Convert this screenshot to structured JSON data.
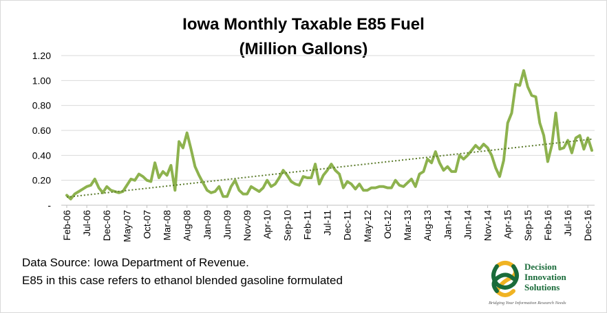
{
  "chart_data": {
    "type": "line",
    "title": "Iowa Monthly Taxable E85 Fuel",
    "subtitle": "(Million Gallons)",
    "xlabel": "",
    "ylabel": "",
    "ylim": [
      0,
      1.2
    ],
    "y_ticks": [
      "-",
      "0.20",
      "0.40",
      "0.60",
      "0.80",
      "1.00",
      "1.20"
    ],
    "x_tick_labels": [
      "Feb-06",
      "Jul-06",
      "Dec-06",
      "May-07",
      "Oct-07",
      "Mar-08",
      "Aug-08",
      "Jan-09",
      "Jun-09",
      "Nov-09",
      "Apr-10",
      "Sep-10",
      "Feb-11",
      "Jul-11",
      "Dec-11",
      "May-12",
      "Oct-12",
      "Mar-13",
      "Aug-13",
      "Jan-14",
      "Jun-14",
      "Nov-14",
      "Apr-15",
      "Sep-15",
      "Feb-16",
      "Jul-16",
      "Dec-16"
    ],
    "start_month": "Feb-06",
    "grid": true,
    "legend": "none",
    "series": [
      {
        "values": [
          0.08,
          0.05,
          0.09,
          0.11,
          0.13,
          0.15,
          0.16,
          0.21,
          0.14,
          0.1,
          0.15,
          0.12,
          0.11,
          0.1,
          0.11,
          0.16,
          0.21,
          0.2,
          0.25,
          0.23,
          0.2,
          0.19,
          0.34,
          0.22,
          0.27,
          0.24,
          0.32,
          0.12,
          0.51,
          0.46,
          0.58,
          0.45,
          0.31,
          0.24,
          0.18,
          0.12,
          0.1,
          0.11,
          0.15,
          0.07,
          0.07,
          0.15,
          0.2,
          0.12,
          0.09,
          0.09,
          0.15,
          0.13,
          0.11,
          0.14,
          0.2,
          0.15,
          0.17,
          0.22,
          0.28,
          0.24,
          0.19,
          0.17,
          0.16,
          0.23,
          0.22,
          0.22,
          0.33,
          0.17,
          0.24,
          0.28,
          0.33,
          0.28,
          0.25,
          0.14,
          0.19,
          0.17,
          0.13,
          0.17,
          0.12,
          0.12,
          0.14,
          0.14,
          0.15,
          0.15,
          0.14,
          0.14,
          0.2,
          0.16,
          0.15,
          0.18,
          0.21,
          0.15,
          0.25,
          0.27,
          0.37,
          0.34,
          0.43,
          0.34,
          0.28,
          0.31,
          0.27,
          0.27,
          0.4,
          0.37,
          0.4,
          0.44,
          0.48,
          0.45,
          0.49,
          0.46,
          0.4,
          0.3,
          0.23,
          0.36,
          0.66,
          0.74,
          0.97,
          0.96,
          1.08,
          0.95,
          0.88,
          0.87,
          0.66,
          0.56,
          0.35,
          0.48,
          0.74,
          0.45,
          0.46,
          0.52,
          0.42,
          0.54,
          0.56,
          0.45,
          0.54,
          0.44
        ],
        "color": "#8db24e"
      }
    ],
    "trendline": {
      "style": "dotted",
      "color": "#5a7a2a",
      "start": 0.065,
      "end": 0.53
    }
  },
  "notes": [
    "Data Source: Iowa Department of Revenue.",
    "E85 in this case refers to ethanol blended gasoline formulated"
  ],
  "logo": {
    "line1": "Decision",
    "line2": "Innovation",
    "line3": "Solutions",
    "tagline": "Bridging Your Information Research Needs"
  }
}
